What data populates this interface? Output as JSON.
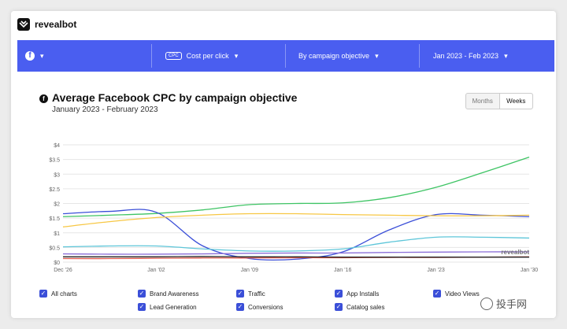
{
  "app": {
    "brand": "revealbot"
  },
  "toolbar": {
    "platform_icon": "facebook-icon",
    "metric_badge": "CPC",
    "metric_label": "Cost per click",
    "group_label": "By campaign objective",
    "date_label": "Jan 2023 - Feb 2023"
  },
  "header": {
    "title": "Average Facebook CPC by campaign objective",
    "subtitle": "January 2023 - February 2023",
    "toggle": {
      "months": "Months",
      "weeks": "Weeks",
      "selected": "Weeks"
    }
  },
  "chart_data": {
    "type": "line",
    "title": "Average Facebook CPC by campaign objective",
    "subtitle": "January 2023 - February 2023",
    "watermark": "revealbot",
    "x_ticks": [
      "Dec '26",
      "Jan '02",
      "Jan '09",
      "Jan '16",
      "Jan '23",
      "Jan '30"
    ],
    "y_ticks": [
      "$4",
      "$3.5",
      "$3",
      "$2.5",
      "$2",
      "$1.5",
      "$1",
      "$0.5",
      "$0"
    ],
    "ylim": [
      0,
      4
    ],
    "grid": true,
    "x": [
      0,
      0.5,
      1,
      1.5,
      2,
      2.5,
      3,
      3.5,
      4,
      4.5,
      5
    ],
    "series": [
      {
        "color": "#3ec464",
        "values": [
          1.55,
          1.6,
          1.66,
          1.78,
          1.96,
          2.0,
          2.02,
          2.2,
          2.55,
          3.05,
          3.58
        ]
      },
      {
        "color": "#3b4fd8",
        "values": [
          1.65,
          1.73,
          1.7,
          0.55,
          0.12,
          0.1,
          0.35,
          1.1,
          1.62,
          1.6,
          1.55
        ]
      },
      {
        "color": "#f7c744",
        "values": [
          1.2,
          1.38,
          1.52,
          1.6,
          1.65,
          1.65,
          1.62,
          1.6,
          1.58,
          1.58,
          1.6
        ]
      },
      {
        "color": "#5ec6d9",
        "values": [
          0.52,
          0.55,
          0.55,
          0.45,
          0.38,
          0.38,
          0.45,
          0.68,
          0.85,
          0.85,
          0.82
        ]
      },
      {
        "color": "#8b6ed8",
        "values": [
          0.28,
          0.27,
          0.27,
          0.28,
          0.3,
          0.31,
          0.31,
          0.33,
          0.34,
          0.35,
          0.35
        ]
      },
      {
        "color": "#e05b4f",
        "values": [
          0.12,
          0.12,
          0.13,
          0.14,
          0.14,
          0.15,
          0.15,
          0.16,
          0.16,
          0.17,
          0.18
        ]
      },
      {
        "color": "#222222",
        "values": [
          0.18,
          0.18,
          0.18,
          0.19,
          0.18,
          0.18,
          0.17,
          0.17,
          0.17,
          0.17,
          0.17
        ]
      }
    ]
  },
  "legend": {
    "all": "All charts",
    "items": [
      "Brand Awareness",
      "Traffic",
      "App Installs",
      "Video Views",
      "Lead Generation",
      "Conversions",
      "Catalog sales"
    ]
  },
  "watermark_text": "投手网"
}
